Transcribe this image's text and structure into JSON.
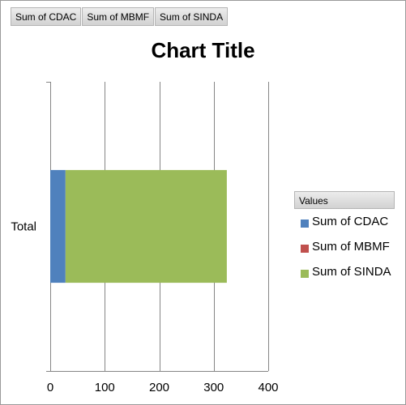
{
  "field_buttons": [
    "Sum of CDAC",
    "Sum of MBMF",
    "Sum of SINDA"
  ],
  "legend": {
    "header": "Values",
    "items": [
      {
        "label": "Sum of CDAC",
        "color": "#4f81bd"
      },
      {
        "label": "Sum of MBMF",
        "color": "#c0504d"
      },
      {
        "label": "Sum of SINDA",
        "color": "#9bbb59"
      }
    ]
  },
  "chart_data": {
    "type": "bar",
    "orientation": "horizontal",
    "stacked": true,
    "title": "Chart Title",
    "categories": [
      "Total"
    ],
    "series": [
      {
        "name": "Sum of CDAC",
        "values": [
          28
        ],
        "color": "#4f81bd"
      },
      {
        "name": "Sum of MBMF",
        "values": [
          0
        ],
        "color": "#c0504d"
      },
      {
        "name": "Sum of SINDA",
        "values": [
          296
        ],
        "color": "#9bbb59"
      }
    ],
    "xlim": [
      0,
      400
    ],
    "xticks": [
      "0",
      "100",
      "200",
      "300",
      "400"
    ],
    "xlabel": "",
    "ylabel": "",
    "grid": true,
    "legend_position": "right"
  }
}
